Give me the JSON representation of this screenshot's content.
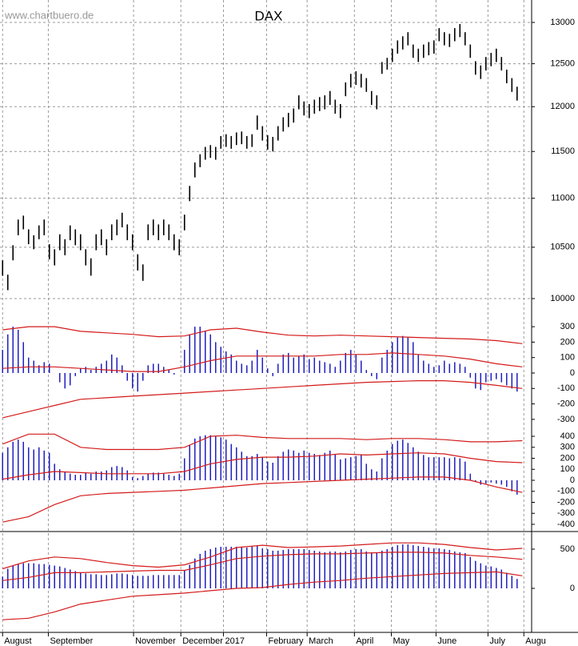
{
  "chart_data": [
    {
      "type": "hilo",
      "title": "DAX",
      "watermark": "www.chartbuero.de",
      "color": "#000000",
      "log_scale": true,
      "ylim": [
        9834,
        13280
      ],
      "yticks": [
        10000,
        10500,
        11000,
        11500,
        12000,
        12500,
        13000
      ],
      "grid": true,
      "high": [
        10370,
        10230,
        10520,
        10780,
        10820,
        10680,
        10620,
        10720,
        10780,
        10530,
        10480,
        10630,
        10580,
        10720,
        10680,
        10630,
        10480,
        10390,
        10630,
        10680,
        10580,
        10730,
        10780,
        10850,
        10730,
        10630,
        10430,
        10330,
        10730,
        10780,
        10730,
        10780,
        10730,
        10630,
        10580,
        10830,
        11130,
        11380,
        11470,
        11550,
        11570,
        11550,
        11670,
        11690,
        11670,
        11710,
        11720,
        11670,
        11690,
        11900,
        11780,
        11680,
        11660,
        11780,
        11880,
        11930,
        11980,
        12130,
        12060,
        12030,
        12080,
        12110,
        12130,
        12180,
        12080,
        12030,
        12280,
        12380,
        12410,
        12380,
        12330,
        12180,
        12130,
        12520,
        12570,
        12680,
        12780,
        12830,
        12880,
        12730,
        12680,
        12730,
        12760,
        12780,
        12930,
        12880,
        12860,
        12930,
        12980,
        12880,
        12730,
        12530,
        12480,
        12580,
        12630,
        12680,
        12580,
        12430,
        12330,
        12230
      ],
      "low": [
        10220,
        10080,
        10370,
        10620,
        10680,
        10530,
        10480,
        10580,
        10620,
        10380,
        10320,
        10470,
        10420,
        10570,
        10520,
        10470,
        10320,
        10220,
        10470,
        10520,
        10420,
        10570,
        10620,
        10700,
        10570,
        10470,
        10270,
        10170,
        10570,
        10620,
        10570,
        10620,
        10570,
        10470,
        10420,
        10670,
        10970,
        11220,
        11330,
        11410,
        11430,
        11410,
        11530,
        11550,
        11530,
        11570,
        11580,
        11530,
        11550,
        11740,
        11620,
        11520,
        11500,
        11620,
        11720,
        11770,
        11820,
        11970,
        11900,
        11870,
        11920,
        11950,
        11970,
        12020,
        11920,
        11870,
        12120,
        12220,
        12250,
        12220,
        12170,
        12020,
        11970,
        12380,
        12430,
        12520,
        12620,
        12670,
        12720,
        12570,
        12520,
        12570,
        12600,
        12620,
        12770,
        12720,
        12700,
        12770,
        12820,
        12720,
        12570,
        12370,
        12320,
        12420,
        12470,
        12520,
        12420,
        12270,
        12170,
        12070
      ]
    },
    {
      "type": "histogram-bands",
      "color": "#1f1fbf",
      "band_color": "#d41a1a",
      "ylim": [
        -337,
        342
      ],
      "yticks": [
        300,
        200,
        100,
        0,
        -100,
        -200,
        -300
      ],
      "values": [
        150,
        250,
        300,
        280,
        200,
        100,
        80,
        50,
        70,
        60,
        0,
        -60,
        -100,
        -80,
        -20,
        30,
        40,
        20,
        40,
        60,
        80,
        120,
        100,
        50,
        -50,
        -100,
        -120,
        -50,
        50,
        60,
        60,
        40,
        20,
        -10,
        0,
        150,
        250,
        300,
        300,
        270,
        250,
        200,
        170,
        140,
        120,
        80,
        60,
        50,
        80,
        150,
        100,
        30,
        -20,
        60,
        120,
        130,
        100,
        110,
        120,
        90,
        100,
        80,
        70,
        60,
        40,
        80,
        130,
        150,
        120,
        80,
        20,
        -20,
        -40,
        100,
        150,
        200,
        230,
        240,
        230,
        200,
        120,
        80,
        60,
        40,
        50,
        80,
        60,
        70,
        60,
        40,
        -30,
        -100,
        -110,
        -60,
        -50,
        -40,
        -60,
        -80,
        -100,
        -120
      ],
      "lines_x": [
        0,
        5,
        10,
        15,
        20,
        25,
        30,
        35,
        40,
        45,
        50,
        55,
        60,
        65,
        70,
        75,
        80,
        85,
        90,
        95,
        100
      ],
      "lines": [
        [
          280,
          300,
          300,
          270,
          260,
          250,
          235,
          240,
          280,
          290,
          265,
          245,
          240,
          245,
          240,
          235,
          230,
          225,
          220,
          210,
          190
        ],
        [
          30,
          40,
          40,
          30,
          20,
          10,
          10,
          40,
          80,
          110,
          110,
          110,
          110,
          120,
          120,
          130,
          120,
          110,
          90,
          60,
          40
        ],
        [
          -290,
          -250,
          -210,
          -170,
          -160,
          -150,
          -140,
          -130,
          -120,
          -110,
          -100,
          -90,
          -80,
          -70,
          -60,
          -55,
          -50,
          -50,
          -60,
          -80,
          -100
        ]
      ]
    },
    {
      "type": "histogram-bands",
      "color": "#1f1fbf",
      "band_color": "#d41a1a",
      "ylim": [
        -451,
        473
      ],
      "yticks": [
        400,
        300,
        200,
        100,
        0,
        -100,
        -200,
        -300,
        -400
      ],
      "values": [
        250,
        300,
        350,
        370,
        350,
        300,
        280,
        300,
        270,
        250,
        150,
        100,
        80,
        60,
        50,
        50,
        70,
        60,
        80,
        80,
        90,
        120,
        130,
        120,
        90,
        30,
        20,
        40,
        60,
        70,
        70,
        60,
        50,
        40,
        60,
        200,
        320,
        380,
        400,
        410,
        410,
        400,
        390,
        370,
        330,
        300,
        260,
        220,
        220,
        240,
        210,
        170,
        160,
        220,
        260,
        280,
        270,
        250,
        270,
        250,
        240,
        230,
        250,
        270,
        240,
        190,
        200,
        210,
        220,
        230,
        150,
        100,
        80,
        200,
        270,
        330,
        360,
        370,
        340,
        300,
        260,
        230,
        210,
        210,
        210,
        210,
        200,
        210,
        200,
        170,
        60,
        -10,
        -40,
        -30,
        -20,
        -30,
        -40,
        -60,
        -100,
        -130
      ],
      "lines_x": [
        0,
        5,
        10,
        15,
        20,
        25,
        30,
        35,
        40,
        45,
        50,
        55,
        60,
        65,
        70,
        75,
        80,
        85,
        90,
        95,
        100
      ],
      "lines": [
        [
          330,
          420,
          420,
          300,
          280,
          280,
          280,
          300,
          400,
          410,
          390,
          380,
          380,
          380,
          370,
          380,
          380,
          370,
          350,
          350,
          360
        ],
        [
          10,
          50,
          80,
          70,
          60,
          60,
          60,
          80,
          150,
          190,
          210,
          210,
          220,
          240,
          230,
          240,
          250,
          240,
          200,
          170,
          160
        ],
        [
          -380,
          -330,
          -220,
          -140,
          -120,
          -110,
          -100,
          -90,
          -70,
          -50,
          -30,
          -20,
          -10,
          0,
          10,
          20,
          30,
          30,
          0,
          -60,
          -110
        ]
      ]
    },
    {
      "type": "histogram-bands",
      "color": "#1f1fbf",
      "band_color": "#d41a1a",
      "ylim": [
        -561,
        704
      ],
      "yticks": [
        500,
        0
      ],
      "values": [
        150,
        250,
        290,
        310,
        320,
        320,
        320,
        310,
        310,
        300,
        290,
        280,
        260,
        240,
        220,
        200,
        190,
        180,
        180,
        170,
        170,
        180,
        190,
        190,
        180,
        170,
        160,
        160,
        160,
        170,
        170,
        170,
        170,
        170,
        170,
        230,
        300,
        380,
        440,
        480,
        500,
        520,
        530,
        530,
        530,
        530,
        520,
        520,
        530,
        540,
        510,
        500,
        480,
        480,
        490,
        500,
        500,
        500,
        500,
        490,
        480,
        470,
        460,
        470,
        470,
        460,
        470,
        490,
        500,
        500,
        470,
        460,
        450,
        480,
        500,
        530,
        550,
        560,
        560,
        550,
        540,
        530,
        520,
        510,
        510,
        500,
        490,
        470,
        460,
        450,
        400,
        350,
        320,
        290,
        280,
        260,
        240,
        200,
        160,
        120
      ],
      "lines_x": [
        0,
        5,
        10,
        15,
        20,
        25,
        30,
        35,
        40,
        45,
        50,
        55,
        60,
        65,
        70,
        75,
        80,
        85,
        90,
        95,
        100
      ],
      "lines": [
        [
          250,
          350,
          400,
          380,
          330,
          290,
          270,
          300,
          400,
          520,
          550,
          520,
          530,
          540,
          560,
          580,
          580,
          560,
          520,
          490,
          510
        ],
        [
          100,
          140,
          200,
          200,
          210,
          220,
          230,
          230,
          300,
          380,
          410,
          430,
          440,
          440,
          450,
          460,
          460,
          450,
          420,
          400,
          370
        ],
        [
          -400,
          -380,
          -300,
          -200,
          -150,
          -100,
          -80,
          -60,
          -30,
          0,
          10,
          50,
          80,
          100,
          130,
          150,
          170,
          190,
          200,
          210,
          160
        ]
      ],
      "xlim": [
        -0.5,
        101.8
      ],
      "xticks": [
        {
          "value": 0,
          "label": "August"
        },
        {
          "value": 8.8,
          "label": "September"
        },
        {
          "value": 25.2,
          "label": "November"
        },
        {
          "value": 34.3,
          "label": "December"
        },
        {
          "value": 42.5,
          "label": "2017"
        },
        {
          "value": 50.8,
          "label": "February"
        },
        {
          "value": 58.6,
          "label": "March"
        },
        {
          "value": 67.7,
          "label": "April"
        },
        {
          "value": 74.8,
          "label": "May"
        },
        {
          "value": 83.4,
          "label": "June"
        },
        {
          "value": 93.4,
          "label": "July"
        },
        {
          "value": 100.3,
          "label": "Augu"
        }
      ]
    }
  ]
}
